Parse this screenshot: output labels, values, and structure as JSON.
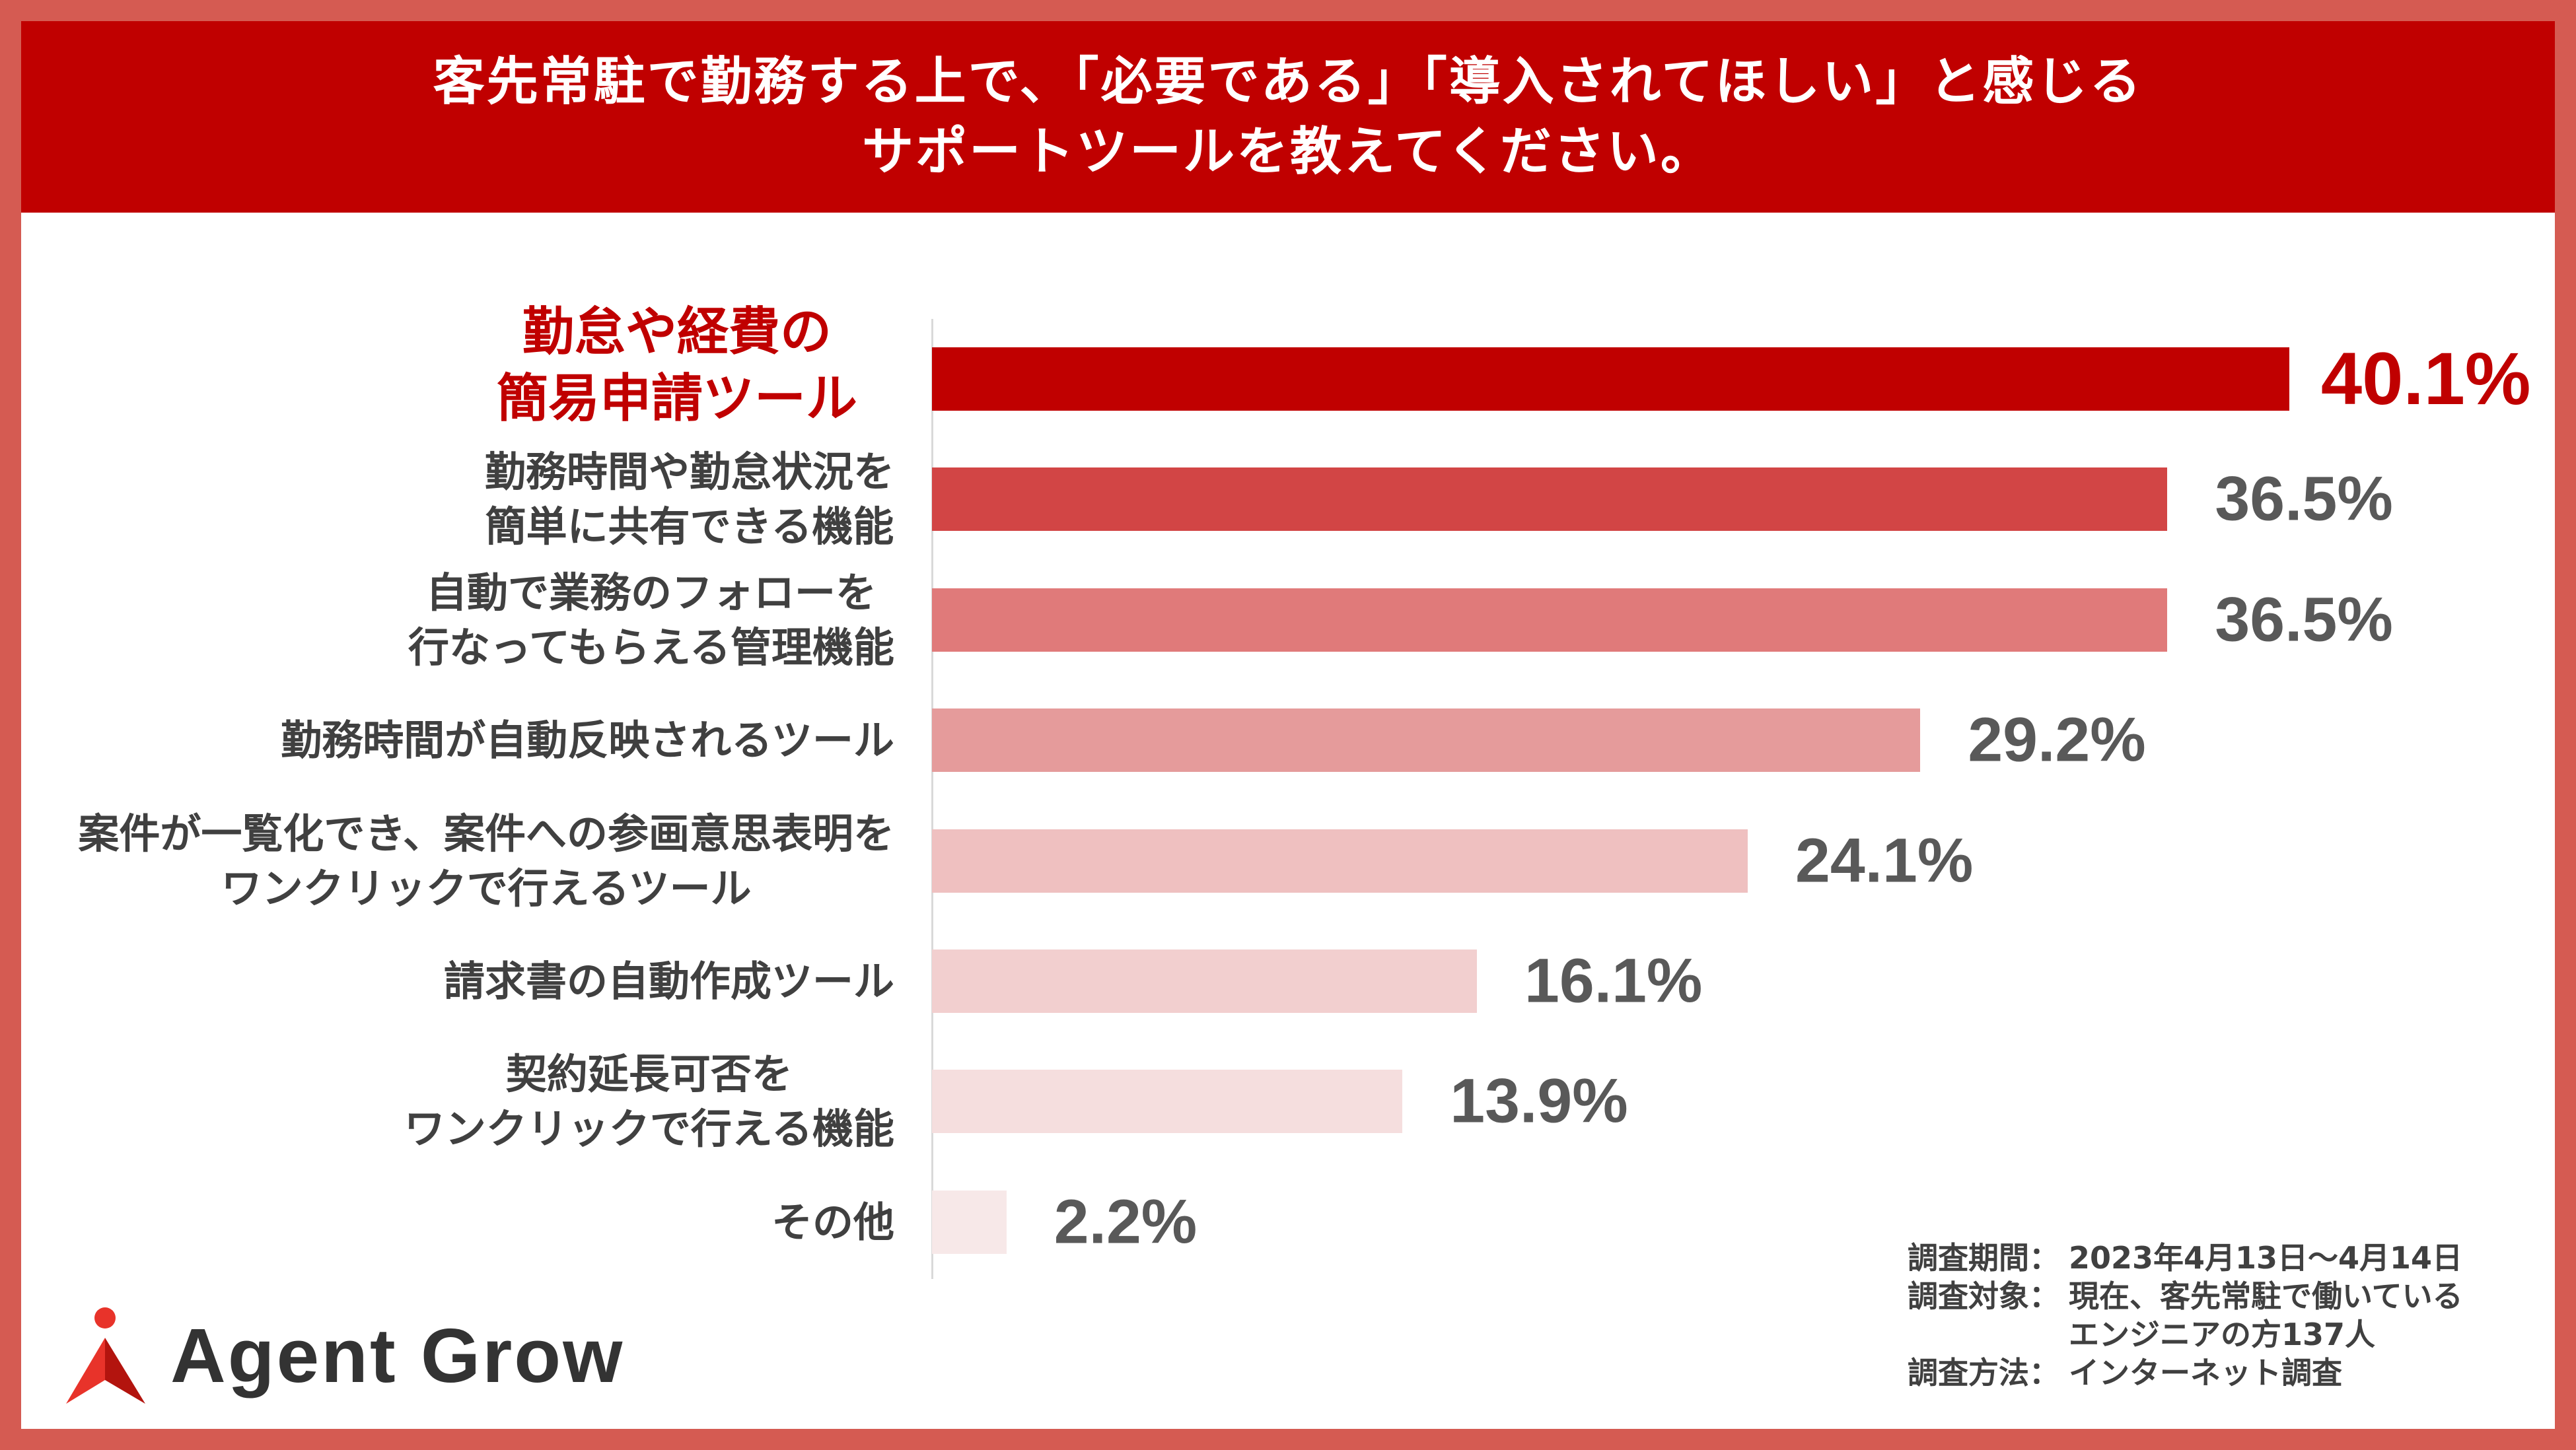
{
  "header": {
    "title_line1": "客先常駐で勤務する上で、「必要である」「導入されてほしい」と感じる",
    "title_line2": "サポートツールを教えてください。"
  },
  "chart_data": {
    "type": "bar",
    "orientation": "horizontal",
    "categories": [
      "勤怠や経費の\n簡易申請ツール",
      "勤務時間や勤怠状況を\n簡単に共有できる機能",
      "自動で業務のフォローを\n行なってもらえる管理機能",
      "勤務時間が自動反映されるツール",
      "案件が一覧化でき、案件への参画意思表明を\nワンクリックで行えるツール",
      "請求書の自動作成ツール",
      "契約延長可否を\nワンクリックで行える機能",
      "その他"
    ],
    "values": [
      40.1,
      36.5,
      36.5,
      29.2,
      24.1,
      16.1,
      13.9,
      2.2
    ],
    "value_labels": [
      "40.1%",
      "36.5%",
      "36.5%",
      "29.2%",
      "24.1%",
      "16.1%",
      "13.9%",
      "2.2%"
    ],
    "unit": "%",
    "xlim": [
      0,
      45
    ],
    "grid": false,
    "legend": "none",
    "bar_colors": [
      "#C00000",
      "#D24545",
      "#E07A7A",
      "#E59B9B",
      "#EFC0C0",
      "#F2CFCF",
      "#F5DEDE",
      "#F7E8E8"
    ],
    "highlight_index": 0,
    "highlight_color": "#C00000"
  },
  "survey_notes": [
    {
      "label": "調査期間：",
      "lines": [
        "2023年4月13日～4月14日"
      ]
    },
    {
      "label": "調査対象：",
      "lines": [
        "現在、客先常駐で働いている",
        "エンジニアの方137人"
      ]
    },
    {
      "label": "調査方法：",
      "lines": [
        "インターネット調査"
      ]
    }
  ],
  "brand": {
    "name": "Agent Grow",
    "logo_icon": "agent-grow-logo-icon"
  },
  "colors": {
    "frame": "#D55B52",
    "header_background": "#C00000",
    "header_text": "#FFFFFF",
    "label_text": "#404040",
    "value_text": "#595959",
    "axis_line": "#D9D9D9",
    "brand_text": "#333333",
    "logo_red": "#E8332A",
    "logo_dark_red": "#B3140E"
  }
}
